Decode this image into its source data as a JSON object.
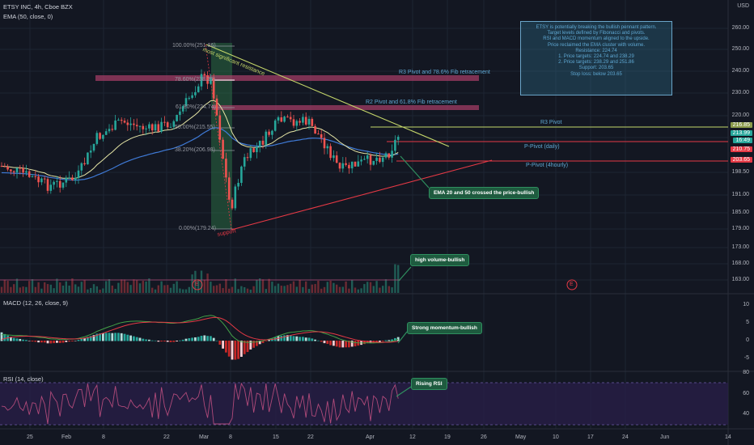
{
  "header": {
    "title": "ETSY INC, 4h, Cboe BZX",
    "ema": "EMA (50, close, 0)",
    "currency": "USD"
  },
  "fib": {
    "l100": "100.00%(251.86)",
    "l786": "78.60%(238.29)",
    "l618": "61.80%(224.74)",
    "l50": "50.00%(215.55)",
    "l382": "38.20%(206.98)",
    "l0": "0.00%(179.24)"
  },
  "annotations": {
    "resistance": "most significant resistance",
    "support": "support",
    "r3fib": "R3 Pivot and 78.6% Fib retracement",
    "r2fib": "R2 Pivot and 61.8% Fib retracement",
    "r3pivot": "R3 Pivot",
    "ppivot_daily": "P-Pivot (daily)",
    "ppivot_4h": "P-Pivot (4hourly)",
    "ema_cross": "EMA 20 and 50 crossed the price-bullish",
    "high_volume": "high volume-bullish",
    "momentum": "Strong momentum-bullish",
    "rsi_rising": "Rising RSI",
    "earnings_1": "E",
    "earnings_2": "E"
  },
  "note_lines": [
    "ETSY is potentially breaking the bullish pennant pattern.",
    "Target levels defined by Fibonacci and pivots.",
    "RSI and MACD momentum aligned to the upside.",
    "Price reclaimed the EMA cluster with volume.",
    "Resistance: 224.74",
    "1. Price targets: 224.74 and 238.29",
    "2. Price targets: 238.29 and 251.86",
    "Support: 203.65",
    "Stop loss: below 203.65"
  ],
  "price_axis": [
    "260.00",
    "250.00",
    "240.00",
    "230.00",
    "220.00",
    "213.99",
    "210.75",
    "203.65",
    "198.50",
    "191.00",
    "185.00",
    "179.00",
    "173.00",
    "168.00",
    "163.00"
  ],
  "price_tags": {
    "last": "213.99",
    "last_time": "16:49",
    "daily_pivot": "210.75",
    "hourly_pivot": "203.65",
    "r3": "216.85"
  },
  "macd": {
    "label": "MACD (12, 26, close, 9)",
    "axis": [
      "10",
      "5",
      "0",
      "-5"
    ]
  },
  "rsi": {
    "label": "RSI (14, close)",
    "axis": [
      "80",
      "60",
      "40"
    ]
  },
  "time_axis": [
    "25",
    "Feb",
    "8",
    "22",
    "Mar",
    "8",
    "15",
    "22",
    "Apr",
    "12",
    "19",
    "26",
    "May",
    "10",
    "17",
    "24",
    "Jun",
    "14"
  ],
  "colors": {
    "up": "#26a69a",
    "down": "#ef5350",
    "ema50": "#3f7ad6",
    "ema20": "#e6e6a6",
    "resistance": "#c6d86a",
    "support": "#e53945",
    "zone": "#b7416f"
  }
}
